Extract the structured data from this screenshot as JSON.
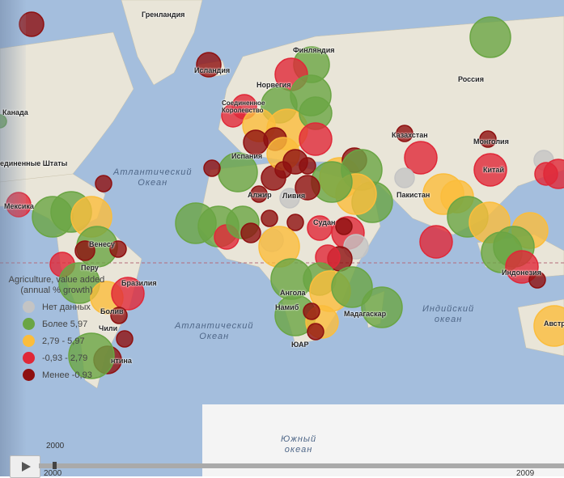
{
  "map_labels": {
    "greenland": "Гренландия",
    "iceland": "Исландия",
    "norway": "Норвегия",
    "finland": "Финляндия",
    "russia": "Россия",
    "canada": "Канада",
    "usa": "единенные Штаты",
    "mexico": "Мексика",
    "uk": "Соединенное Королевство",
    "spain": "Испания",
    "algeria": "Алжир",
    "libya": "Ливия",
    "sudan": "Судан",
    "kazakhstan": "Казахстан",
    "mongolia": "Монголия",
    "china": "Китай",
    "pakistan": "Пакистан",
    "indonesia": "Индонезия",
    "australia": "Австр",
    "venezuela": "Венесу",
    "brazil": "Бразилия",
    "peru": "Перу",
    "bolivia": "Болив",
    "chile": "Чили",
    "argentina": "нтина",
    "angola": "Ангола",
    "namibia": "Намиб",
    "sa": "ЮАР",
    "madagascar": "Мадагаскар"
  },
  "oceans": {
    "atlantic_n": "Атлантический\nОкеан",
    "atlantic_s": "Атлантический\nОкеан",
    "indian": "Индийский\nокеан",
    "southern": "Южный\nокеан"
  },
  "legend": {
    "title": "Agriculture, value added (annual % growth)",
    "items": [
      {
        "label": "Нет данных",
        "color": "#c4c4c4"
      },
      {
        "label": "Более 5,97",
        "color": "#6aa544"
      },
      {
        "label": "2,79 - 5,97",
        "color": "#fbbd3c"
      },
      {
        "label": "-0,93 - 2,79",
        "color": "#e02838"
      },
      {
        "label": "Менее -0,93",
        "color": "#8e1010"
      }
    ]
  },
  "timeline": {
    "current_year": "2000",
    "start_year": "2000",
    "end_year": "2009"
  }
}
